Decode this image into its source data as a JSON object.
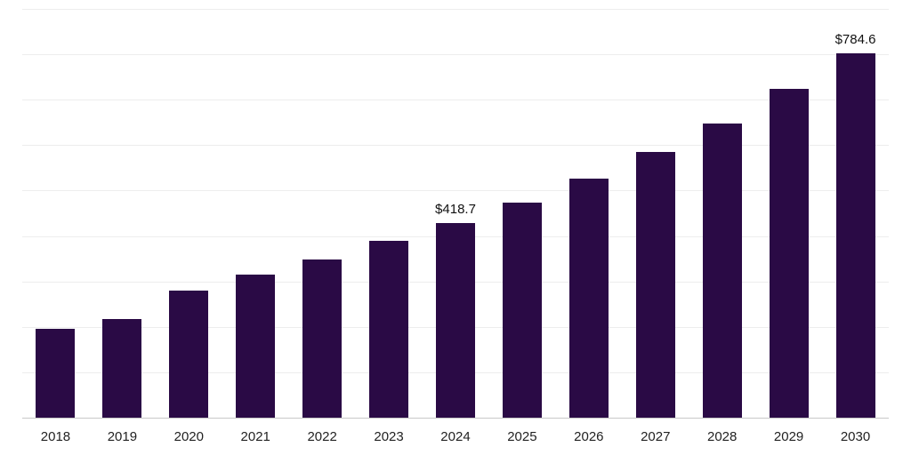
{
  "chart_data": {
    "type": "bar",
    "title": "",
    "xlabel": "",
    "ylabel": "",
    "categories": [
      "2018",
      "2019",
      "2020",
      "2021",
      "2022",
      "2023",
      "2024",
      "2025",
      "2026",
      "2027",
      "2028",
      "2029",
      "2030"
    ],
    "values": [
      192,
      213,
      274,
      309,
      341,
      380,
      418.7,
      464,
      514,
      573,
      634,
      707,
      784.6
    ],
    "annotations": [
      {
        "category": "2024",
        "label": "$418.7"
      },
      {
        "category": "2030",
        "label": "$784.6"
      }
    ],
    "ylim": [
      0,
      880
    ],
    "gridlines": 9,
    "grid": "horizontal",
    "legend": "none",
    "colors": {
      "bar": "#2a0a45",
      "gridline": "#ededed",
      "axis_line": "#c9c9c9",
      "label_text": "#222222",
      "annotation_text": "#111111"
    }
  }
}
